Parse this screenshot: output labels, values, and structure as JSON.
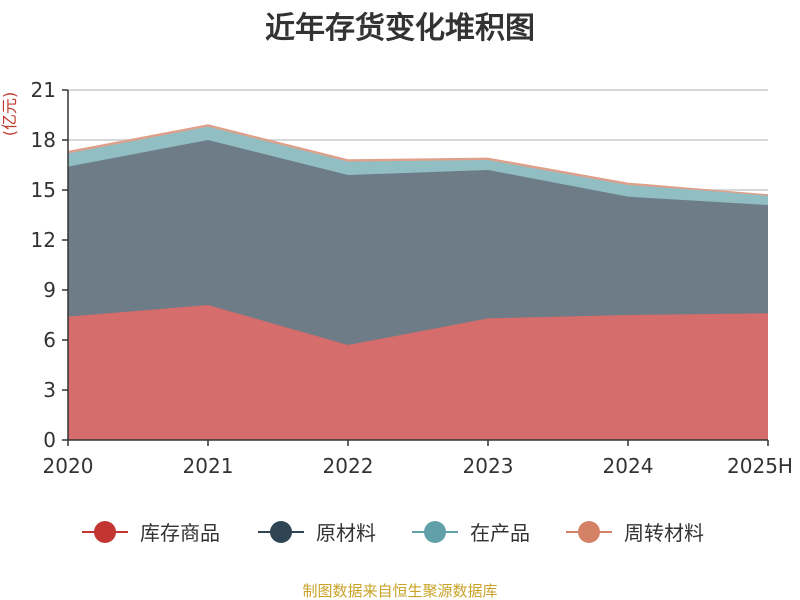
{
  "chart_data": {
    "type": "area",
    "stacked": true,
    "title": "近年存货变化堆积图",
    "unit_label": "(亿元)",
    "source": "制图数据来自恒生聚源数据库",
    "categories": [
      "2020",
      "2021",
      "2022",
      "2023",
      "2024",
      "2025H"
    ],
    "ylim": [
      0,
      21
    ],
    "yticks": [
      0,
      3,
      6,
      9,
      12,
      15,
      18,
      21
    ],
    "grid": true,
    "legend_position": "bottom",
    "series": [
      {
        "name": "库存商品",
        "color": "#c23531",
        "area_color": "#d46d6b",
        "values": [
          7.4,
          8.1,
          5.7,
          7.3,
          7.5,
          7.6
        ]
      },
      {
        "name": "原材料",
        "color": "#2f4554",
        "area_color": "#6e7c87",
        "values": [
          9.0,
          9.9,
          10.2,
          8.9,
          7.1,
          6.5
        ]
      },
      {
        "name": "在产品",
        "color": "#61a0a8",
        "area_color": "#90bec3",
        "values": [
          0.8,
          0.8,
          0.8,
          0.6,
          0.7,
          0.6
        ]
      },
      {
        "name": "周转材料",
        "color": "#d48265",
        "area_color": "#dea08a",
        "values": [
          0.1,
          0.1,
          0.1,
          0.1,
          0.1,
          0.0
        ]
      }
    ]
  }
}
